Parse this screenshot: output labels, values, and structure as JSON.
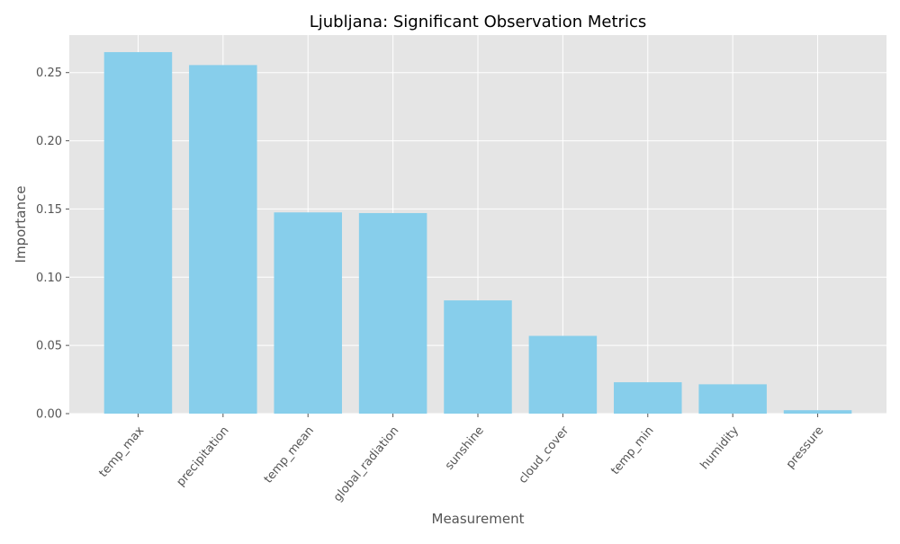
{
  "chart_data": {
    "type": "bar",
    "title": "Ljubljana: Significant Observation Metrics",
    "xlabel": "Measurement",
    "ylabel": "Importance",
    "categories": [
      "temp_max",
      "precipitation",
      "temp_mean",
      "global_radiation",
      "sunshine",
      "cloud_cover",
      "temp_min",
      "humidity",
      "pressure"
    ],
    "values": [
      0.265,
      0.2555,
      0.1475,
      0.147,
      0.083,
      0.057,
      0.023,
      0.0215,
      0.0025
    ],
    "ylim": [
      0,
      0.2775
    ],
    "yticks": [
      "0.00",
      "0.05",
      "0.10",
      "0.15",
      "0.20",
      "0.25"
    ],
    "grid": true,
    "colors": {
      "bar": "#87ceeb",
      "plot_background": "#e5e5e5",
      "grid": "#ffffff",
      "text": "#555555",
      "title": "#000000"
    }
  }
}
